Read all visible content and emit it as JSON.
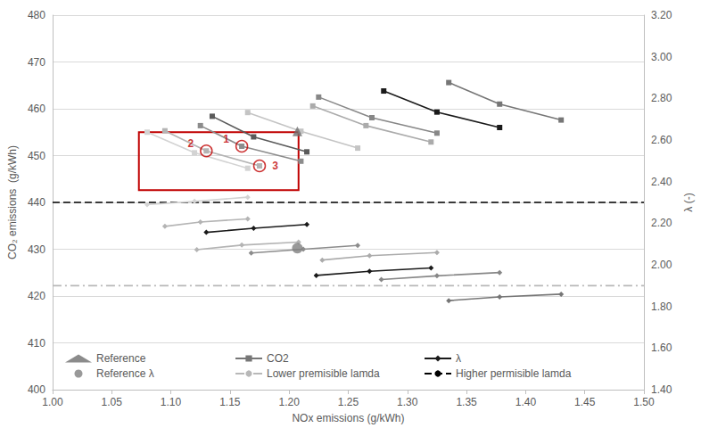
{
  "chart_data": {
    "type": "line",
    "x_label": "NOx emissions (g/kWh)",
    "y_label": "CO₂ emissions  (g/kWh)",
    "y2_label": "λ (-)",
    "xlim": [
      1.0,
      1.5
    ],
    "xticks": [
      {
        "value": 1.0,
        "label": "1.00"
      },
      1.05,
      {
        "value": 1.1,
        "label": "1.10"
      },
      1.15,
      {
        "value": 1.2,
        "label": "1.20"
      },
      1.25,
      {
        "value": 1.3,
        "label": "1.30"
      },
      1.35,
      {
        "value": 1.4,
        "label": "1.40"
      },
      1.45,
      {
        "value": 1.5,
        "label": "1.50"
      }
    ],
    "ylim": [
      400,
      480
    ],
    "yticks": [
      400,
      410,
      420,
      430,
      440,
      450,
      460,
      470,
      480
    ],
    "y2lim": [
      1.4,
      3.2
    ],
    "y2ticks": [
      {
        "value": 1.4,
        "label": "1.40"
      },
      {
        "value": 1.6,
        "label": "1.60"
      },
      {
        "value": 1.8,
        "label": "1.80"
      },
      {
        "value": 2.0,
        "label": "2.00"
      },
      {
        "value": 2.2,
        "label": "2.20"
      },
      {
        "value": 2.4,
        "label": "2.40"
      },
      {
        "value": 2.6,
        "label": "2.60"
      },
      {
        "value": 2.8,
        "label": "2.80"
      },
      {
        "value": 3.0,
        "label": "3.00"
      },
      {
        "value": 3.2,
        "label": "3.20"
      }
    ],
    "grid": true,
    "legend": "lower left",
    "series": [
      {
        "name": "Reference",
        "type": "scatter",
        "marker": "triangle",
        "color": "#6e6e6e",
        "x": [
          1.207
        ],
        "values": [
          455.2
        ]
      },
      {
        "name": "CO2",
        "marker": "square",
        "color": "#767676",
        "x": [
          1.335,
          1.378,
          1.43
        ],
        "values": [
          465.6,
          461.0,
          457.6
        ]
      },
      {
        "name": "CO2",
        "marker": "square",
        "color": "#d3d3d3",
        "x": [
          1.08,
          1.12,
          1.165
        ],
        "values": [
          455.0,
          450.6,
          447.3
        ]
      },
      {
        "name": "CO2",
        "marker": "square",
        "color": "#b4b4b4",
        "x": [
          1.095,
          1.13,
          1.175
        ],
        "values": [
          455.3,
          451.0,
          447.8
        ]
      },
      {
        "name": "CO2",
        "marker": "square",
        "color": "#8c8c8c",
        "x": [
          1.125,
          1.16,
          1.21
        ],
        "values": [
          456.4,
          452.0,
          448.8
        ]
      },
      {
        "name": "CO2",
        "marker": "square",
        "color": "#5a5a5a",
        "x": [
          1.135,
          1.17,
          1.215
        ],
        "values": [
          458.4,
          454.0,
          450.8
        ]
      },
      {
        "name": "CO2",
        "marker": "square",
        "color": "#c4c4c4",
        "x": [
          1.165,
          1.21,
          1.258
        ],
        "values": [
          459.2,
          455.2,
          451.6
        ]
      },
      {
        "name": "CO2",
        "marker": "square",
        "color": "#ababab",
        "x": [
          1.22,
          1.265,
          1.32
        ],
        "values": [
          460.6,
          456.4,
          452.9
        ]
      },
      {
        "name": "CO2",
        "marker": "square",
        "color": "#878787",
        "x": [
          1.225,
          1.27,
          1.325
        ],
        "values": [
          462.5,
          458.1,
          454.8
        ]
      },
      {
        "name": "CO2",
        "marker": "square",
        "color": "#1a1a1a",
        "x": [
          1.28,
          1.325,
          1.378
        ],
        "values": [
          463.8,
          459.3,
          456.0
        ]
      },
      {
        "name": "λ",
        "axis": "y2",
        "marker": "diamond",
        "color": "#1a1a1a",
        "x": [
          1.13,
          1.17,
          1.215
        ],
        "values": [
          2.156,
          2.176,
          2.194
        ]
      },
      {
        "name": "λ",
        "axis": "y2",
        "marker": "diamond",
        "color": "#d3d3d3",
        "x": [
          1.08,
          1.12,
          1.165
        ],
        "values": [
          2.289,
          2.305,
          2.325
        ]
      },
      {
        "name": "λ",
        "axis": "y2",
        "marker": "diamond",
        "color": "#b4b4b4",
        "x": [
          1.095,
          1.125,
          1.165
        ],
        "values": [
          2.185,
          2.206,
          2.221
        ]
      },
      {
        "name": "λ",
        "axis": "y2",
        "marker": "diamond",
        "color": "#b4b4b4",
        "x": [
          1.122,
          1.16,
          1.208
        ],
        "values": [
          2.073,
          2.095,
          2.109
        ]
      },
      {
        "name": "λ",
        "axis": "y2",
        "marker": "diamond",
        "color": "#8c8c8c",
        "x": [
          1.168,
          1.212,
          1.258
        ],
        "values": [
          2.057,
          2.075,
          2.093
        ]
      },
      {
        "name": "λ",
        "axis": "y2",
        "marker": "diamond",
        "color": "#ababab",
        "x": [
          1.228,
          1.268,
          1.325
        ],
        "values": [
          2.023,
          2.044,
          2.059
        ]
      },
      {
        "name": "λ",
        "axis": "y2",
        "marker": "diamond",
        "color": "#1a1a1a",
        "x": [
          1.223,
          1.268,
          1.32
        ],
        "values": [
          1.949,
          1.969,
          1.985
        ]
      },
      {
        "name": "λ",
        "axis": "y2",
        "marker": "diamond",
        "color": "#878787",
        "x": [
          1.278,
          1.325,
          1.378
        ],
        "values": [
          1.929,
          1.947,
          1.963
        ]
      },
      {
        "name": "λ",
        "axis": "y2",
        "marker": "diamond",
        "color": "#767676",
        "x": [
          1.335,
          1.378,
          1.43
        ],
        "values": [
          1.828,
          1.846,
          1.859
        ]
      },
      {
        "name": "Reference λ",
        "type": "scatter",
        "axis": "y2",
        "marker": "circle",
        "color": "#808080",
        "x": [
          1.207
        ],
        "values": [
          2.08
        ]
      },
      {
        "name": "Lower premisible lamda",
        "type": "hline",
        "axis": "y2",
        "line_style": "dashdot",
        "color": "#b8b8b8",
        "values": [
          1.9
        ]
      },
      {
        "name": "Higher permisible lamda",
        "type": "hline",
        "axis": "y2",
        "line_style": "dashed",
        "color": "#000000",
        "values": [
          2.3
        ]
      }
    ],
    "annotations": {
      "color": "#c00000",
      "box": {
        "x": [
          1.073,
          1.208
        ],
        "y": [
          442.6,
          455.0
        ]
      },
      "circles": [
        {
          "text": "1",
          "x": 1.16,
          "y": 452.0
        },
        {
          "text": "2",
          "x": 1.13,
          "y": 451.0
        },
        {
          "text": "3",
          "x": 1.175,
          "y": 447.8
        }
      ]
    }
  }
}
